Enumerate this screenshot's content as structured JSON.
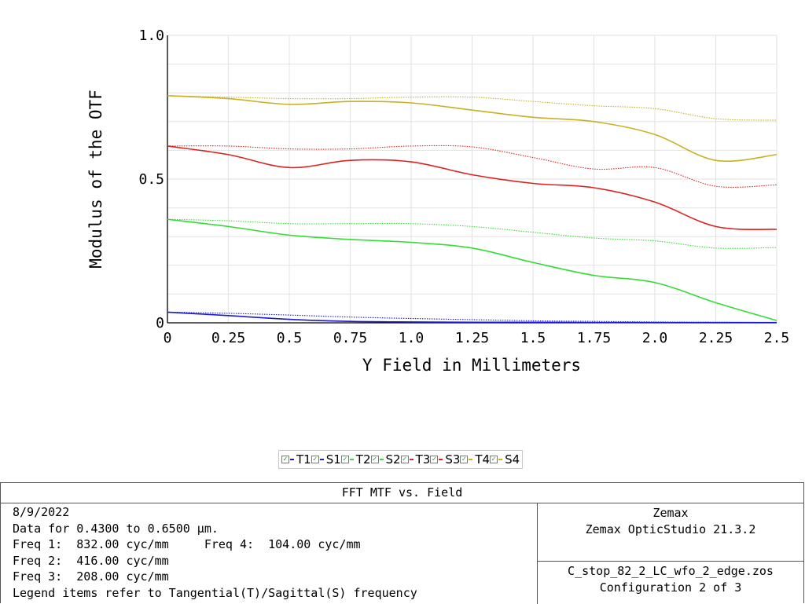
{
  "chart_data": {
    "type": "line",
    "title": "FFT MTF vs. Field",
    "xlabel": "Y Field in Millimeters",
    "ylabel": "Modulus of the OTF",
    "xlim": [
      0,
      2.5
    ],
    "ylim": [
      0,
      1.0
    ],
    "x_ticks": [
      "0",
      "0.25",
      "0.5",
      "0.75",
      "1.0",
      "1.25",
      "1.5",
      "1.75",
      "2.0",
      "2.25",
      "2.5"
    ],
    "x_tick_values": [
      0,
      0.25,
      0.5,
      0.75,
      1.0,
      1.25,
      1.5,
      1.75,
      2.0,
      2.25,
      2.5
    ],
    "y_ticks": [
      "0",
      "0.5",
      "1.0"
    ],
    "y_tick_values": [
      0,
      0.5,
      1.0
    ],
    "grid": true,
    "series": [
      {
        "name": "T1",
        "color": "#1a1acc",
        "style": "solid",
        "x": [
          0,
          0.25,
          0.5,
          0.75,
          1.0,
          1.25,
          1.5,
          1.75,
          2.0,
          2.25,
          2.5
        ],
        "y": [
          0.037,
          0.025,
          0.012,
          0.005,
          0.003,
          0.002,
          0.002,
          0.001,
          0.001,
          0.001,
          0.001
        ]
      },
      {
        "name": "S1",
        "color": "#1a1acc",
        "style": "dotted",
        "x": [
          0,
          0.25,
          0.5,
          0.75,
          1.0,
          1.25,
          1.5,
          1.75,
          2.0,
          2.25,
          2.5
        ],
        "y": [
          0.037,
          0.033,
          0.027,
          0.02,
          0.015,
          0.011,
          0.007,
          0.005,
          0.003,
          0.002,
          0.001
        ]
      },
      {
        "name": "T2",
        "color": "#33dd33",
        "style": "solid",
        "x": [
          0,
          0.25,
          0.5,
          0.75,
          1.0,
          1.25,
          1.5,
          1.75,
          2.0,
          2.25,
          2.5
        ],
        "y": [
          0.36,
          0.335,
          0.305,
          0.29,
          0.28,
          0.26,
          0.21,
          0.165,
          0.14,
          0.07,
          0.008
        ]
      },
      {
        "name": "S2",
        "color": "#33dd33",
        "style": "dotted",
        "x": [
          0,
          0.25,
          0.5,
          0.75,
          1.0,
          1.25,
          1.5,
          1.75,
          2.0,
          2.25,
          2.5
        ],
        "y": [
          0.36,
          0.355,
          0.345,
          0.345,
          0.345,
          0.335,
          0.315,
          0.295,
          0.285,
          0.26,
          0.262
        ]
      },
      {
        "name": "T3",
        "color": "#dd2222",
        "style": "solid",
        "x": [
          0,
          0.25,
          0.5,
          0.75,
          1.0,
          1.25,
          1.5,
          1.75,
          2.0,
          2.25,
          2.5
        ],
        "y": [
          0.615,
          0.585,
          0.54,
          0.565,
          0.56,
          0.515,
          0.485,
          0.47,
          0.42,
          0.335,
          0.325
        ]
      },
      {
        "name": "S3",
        "color": "#dd2222",
        "style": "dotted",
        "x": [
          0,
          0.25,
          0.5,
          0.75,
          1.0,
          1.25,
          1.5,
          1.75,
          2.0,
          2.25,
          2.5
        ],
        "y": [
          0.615,
          0.615,
          0.605,
          0.605,
          0.615,
          0.612,
          0.575,
          0.535,
          0.54,
          0.475,
          0.48
        ]
      },
      {
        "name": "T4",
        "color": "#c8b020",
        "style": "solid",
        "x": [
          0,
          0.25,
          0.5,
          0.75,
          1.0,
          1.25,
          1.5,
          1.75,
          2.0,
          2.25,
          2.5
        ],
        "y": [
          0.79,
          0.78,
          0.76,
          0.77,
          0.765,
          0.74,
          0.715,
          0.7,
          0.655,
          0.565,
          0.585
        ]
      },
      {
        "name": "S4",
        "color": "#c8b020",
        "style": "dotted",
        "x": [
          0,
          0.25,
          0.5,
          0.75,
          1.0,
          1.25,
          1.5,
          1.75,
          2.0,
          2.25,
          2.5
        ],
        "y": [
          0.79,
          0.785,
          0.78,
          0.78,
          0.785,
          0.785,
          0.77,
          0.755,
          0.745,
          0.71,
          0.705
        ]
      }
    ]
  },
  "legend": {
    "items": [
      {
        "label": "T1",
        "color": "#1a1acc"
      },
      {
        "label": "S1",
        "color": "#1a1acc"
      },
      {
        "label": "T2",
        "color": "#33dd33"
      },
      {
        "label": "S2",
        "color": "#33dd33"
      },
      {
        "label": "T3",
        "color": "#dd2222"
      },
      {
        "label": "S3",
        "color": "#dd2222"
      },
      {
        "label": "T4",
        "color": "#c8b020"
      },
      {
        "label": "S4",
        "color": "#c8b020"
      }
    ]
  },
  "info": {
    "title": "FFT MTF vs. Field",
    "date": "8/9/2022",
    "data_range": "Data for 0.4300 to 0.6500 µm.",
    "freq1": "Freq 1:  832.00 cyc/mm",
    "freq4": "Freq 4:  104.00 cyc/mm",
    "freq2": "Freq 2:  416.00 cyc/mm",
    "freq3": "Freq 3:  208.00 cyc/mm",
    "legend_note": "Legend items refer to Tangential(T)/Sagittal(S) frequency",
    "company": "Zemax",
    "product": "Zemax OpticStudio 21.3.2",
    "file": "C_stop_82_2_LC_wfo_2_edge.zos",
    "configuration": "Configuration 2 of 3"
  }
}
